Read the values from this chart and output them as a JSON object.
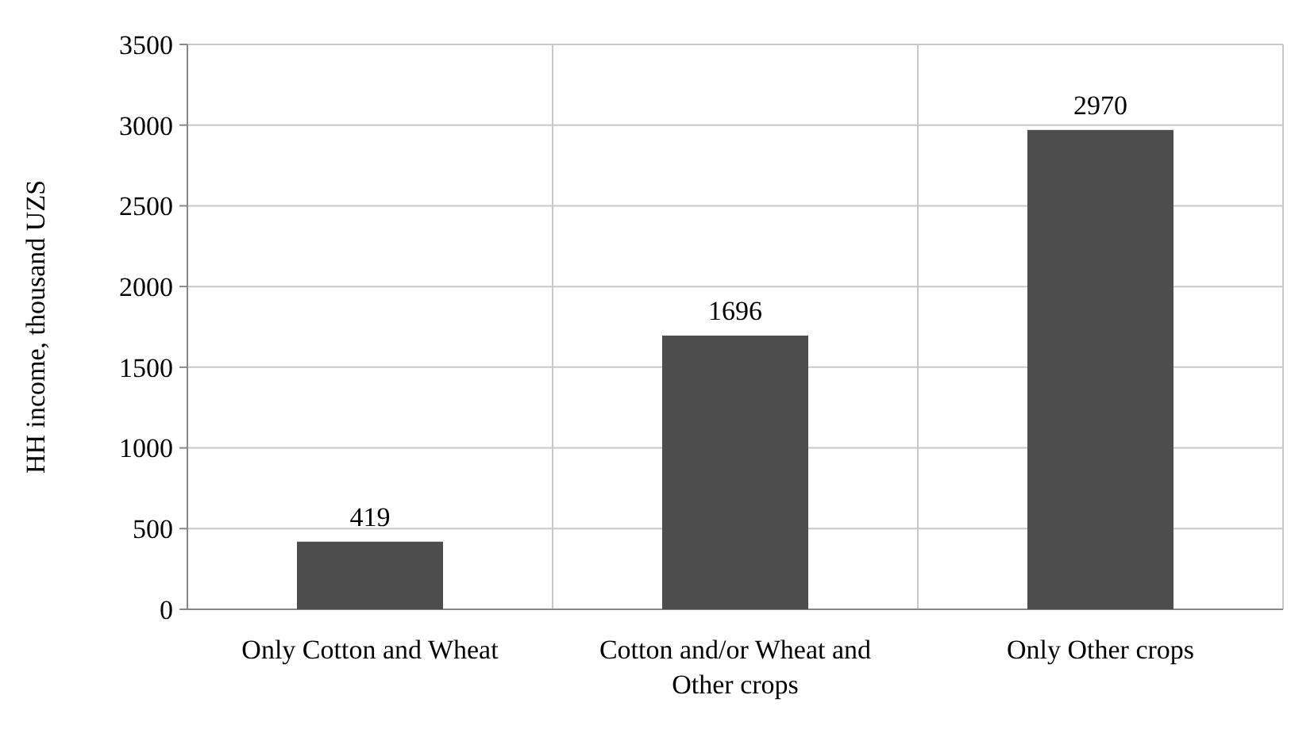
{
  "chart_data": {
    "type": "bar",
    "ylabel": "HH income, thousand UZS",
    "categories": [
      "Only Cotton and Wheat",
      "Cotton and/or Wheat and Other crops",
      "Only Other crops"
    ],
    "values": [
      419,
      1696,
      2970
    ],
    "color": "#4d4d4d",
    "ylim": [
      0,
      3500
    ],
    "yticks": [
      0,
      500,
      1000,
      1500,
      2000,
      2500,
      3000,
      3500
    ],
    "grid": true,
    "data_labels": true
  }
}
